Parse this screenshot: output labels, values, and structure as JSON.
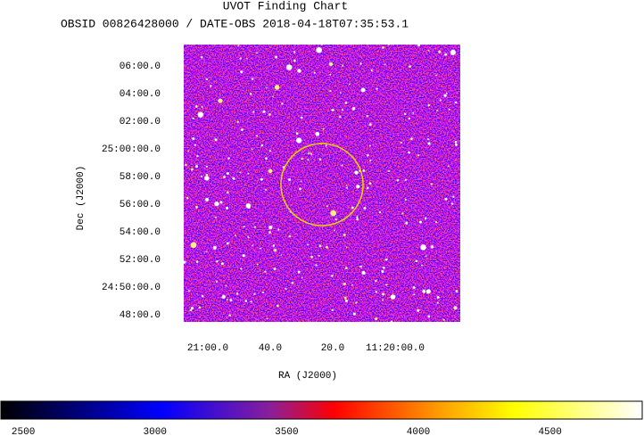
{
  "chart_data": {
    "type": "image",
    "title": "UVOT Finding Chart",
    "subtitle": "OBSID 00826428000 / DATE-OBS 2018-04-18T07:35:53.1",
    "x_label": "RA (J2000)",
    "y_label": "Dec (J2000)",
    "xlim": [
      170.2821,
      169.9131
    ],
    "ylim": [
      24.7914,
      25.1258
    ],
    "xticks": [
      {
        "value": 170.25,
        "label": "21:00.0"
      },
      {
        "value": 170.1667,
        "label": "40.0"
      },
      {
        "value": 170.0833,
        "label": "20.0"
      },
      {
        "value": 170.0,
        "label": "11:20:00.0"
      }
    ],
    "yticks": [
      {
        "value": 25.1,
        "label": "06:00.0"
      },
      {
        "value": 25.0667,
        "label": "04:00.0"
      },
      {
        "value": 25.0333,
        "label": "02:00.0"
      },
      {
        "value": 25.0,
        "label": "25:00:00.0"
      },
      {
        "value": 24.9667,
        "label": "58:00.0"
      },
      {
        "value": 24.9333,
        "label": "56:00.0"
      },
      {
        "value": 24.9,
        "label": "54:00.0"
      },
      {
        "value": 24.8667,
        "label": "52:00.0"
      },
      {
        "value": 24.8333,
        "label": "24:50:00.0"
      },
      {
        "value": 24.8,
        "label": "48:00.0"
      }
    ],
    "region": {
      "ra": 170.0976,
      "dec": 24.957,
      "radius": 0.0495,
      "color": "#e8d400"
    },
    "colorbar": {
      "clim": [
        2415,
        4850
      ],
      "ticks": [
        2500,
        3000,
        3500,
        4000,
        4500
      ]
    }
  }
}
